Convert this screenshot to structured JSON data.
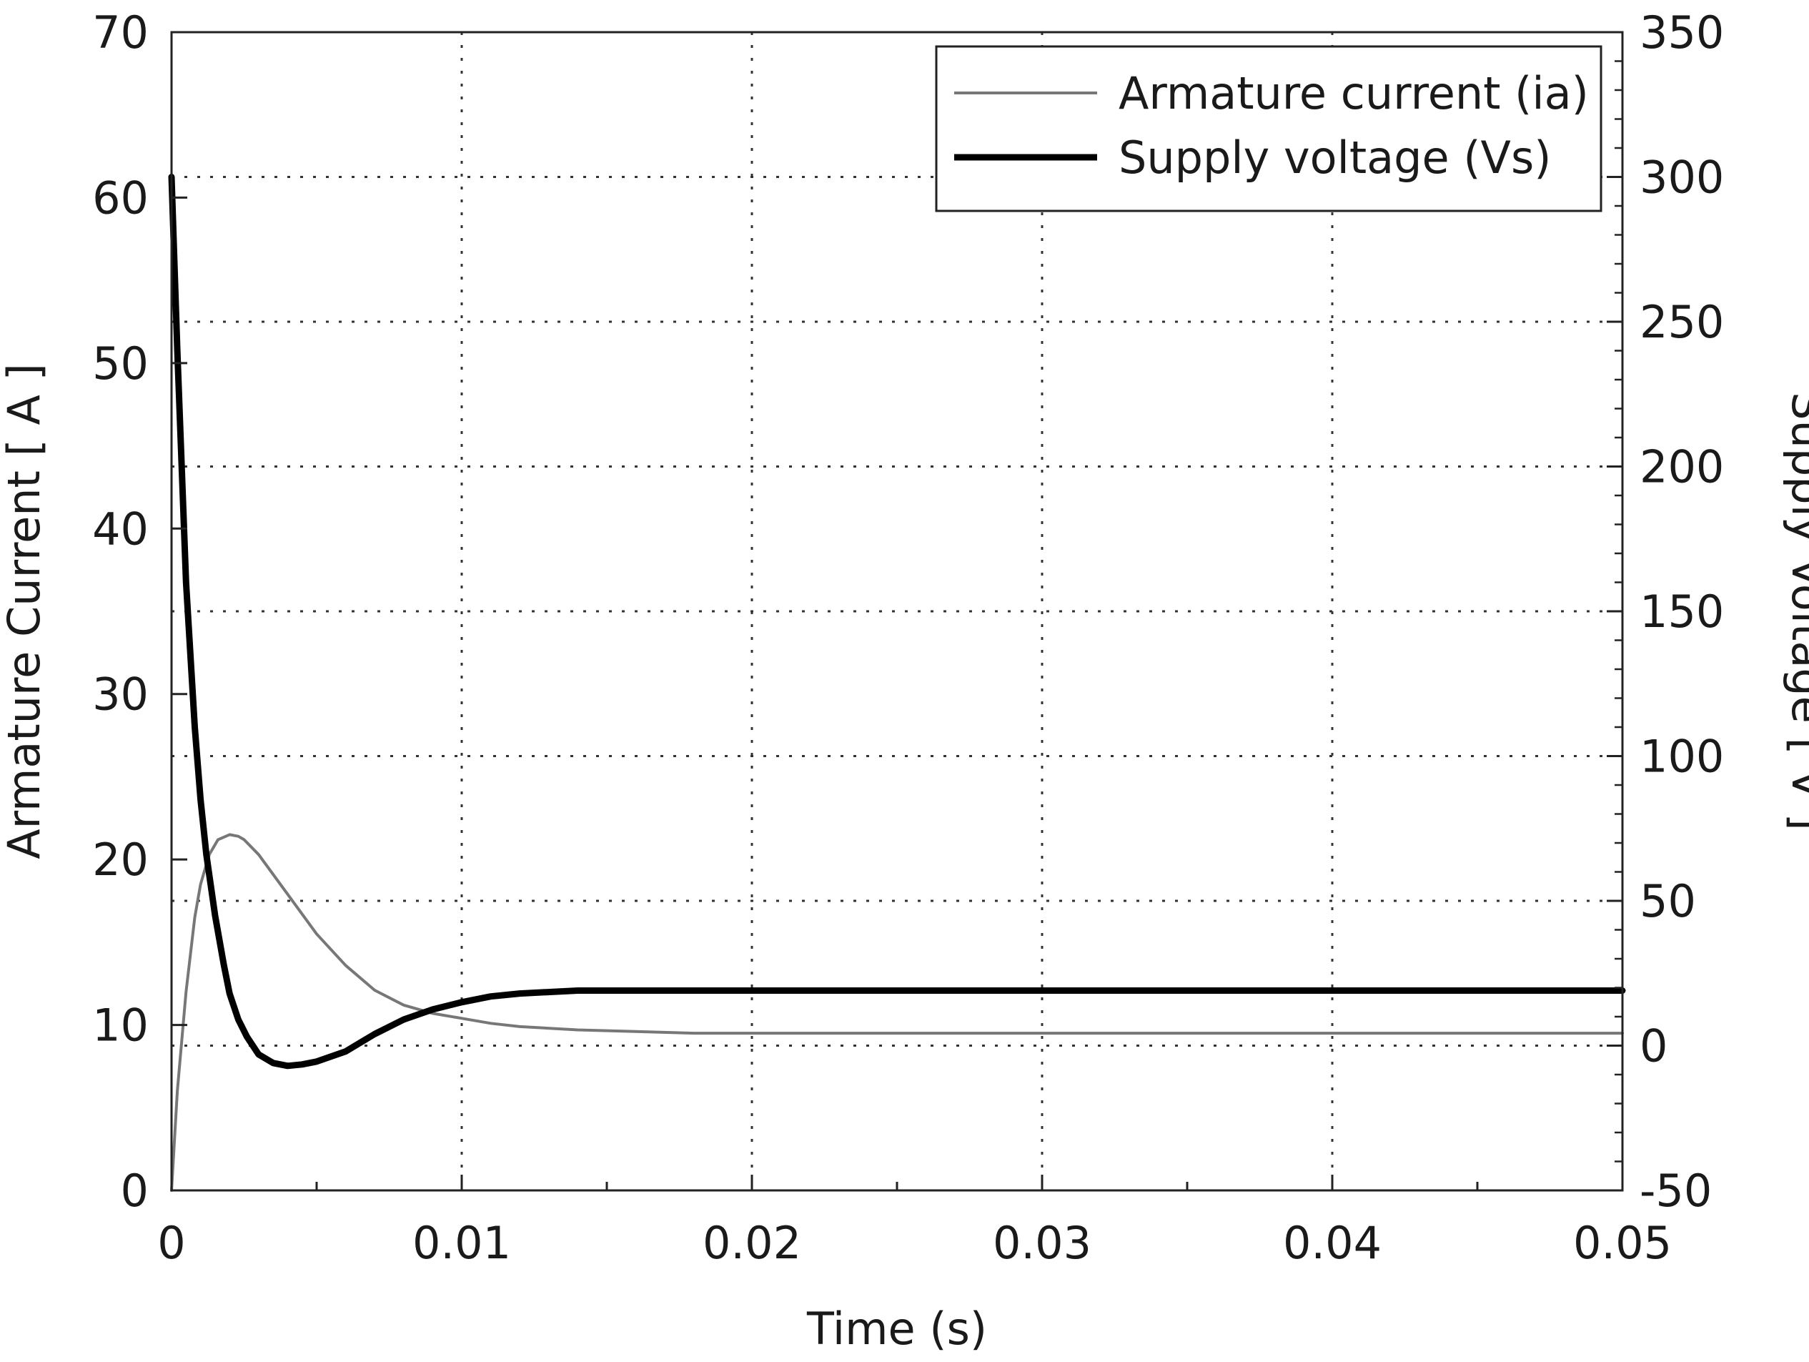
{
  "chart_data": {
    "type": "line",
    "title": "",
    "xlabel": "Time (s)",
    "ylabel": "Armature Current  [ A ]",
    "ylabel_right": "Supply Voltage  [ V ]",
    "xlim": [
      0,
      0.05
    ],
    "ylim": [
      0,
      70
    ],
    "ylim_right": [
      -50,
      350
    ],
    "x_ticks": [
      0,
      0.01,
      0.02,
      0.03,
      0.04,
      0.05
    ],
    "x_tick_labels": [
      "0",
      "0.01",
      "0.02",
      "0.03",
      "0.04",
      "0.05"
    ],
    "y_ticks": [
      0,
      10,
      20,
      30,
      40,
      50,
      60,
      70
    ],
    "y_tick_labels": [
      "0",
      "10",
      "20",
      "30",
      "40",
      "50",
      "60",
      "70"
    ],
    "y_right_ticks": [
      -50,
      0,
      50,
      100,
      150,
      200,
      250,
      300,
      350
    ],
    "y_right_tick_labels": [
      "-50",
      "0",
      "50",
      "100",
      "150",
      "200",
      "250",
      "300",
      "350"
    ],
    "grid": true,
    "legend_position": "top-right",
    "series": [
      {
        "name": "Armature current (ia)",
        "axis": "left",
        "color": "#777777",
        "x": [
          0,
          0.0002,
          0.0005,
          0.0008,
          0.001,
          0.0013,
          0.0016,
          0.002,
          0.0023,
          0.0025,
          0.003,
          0.004,
          0.005,
          0.006,
          0.007,
          0.008,
          0.009,
          0.01,
          0.011,
          0.012,
          0.014,
          0.016,
          0.018,
          0.02,
          0.025,
          0.03,
          0.04,
          0.05
        ],
        "y": [
          0,
          6,
          12,
          16.5,
          18.5,
          20.3,
          21.2,
          21.5,
          21.4,
          21.2,
          20.3,
          17.9,
          15.5,
          13.6,
          12.1,
          11.2,
          10.7,
          10.4,
          10.1,
          9.9,
          9.7,
          9.6,
          9.5,
          9.5,
          9.5,
          9.5,
          9.5,
          9.5
        ]
      },
      {
        "name": "Supply voltage (Vs)",
        "axis": "right",
        "color": "#000000",
        "x": [
          0,
          0.0002,
          0.0005,
          0.0008,
          0.001,
          0.0012,
          0.0015,
          0.0018,
          0.002,
          0.0023,
          0.0026,
          0.003,
          0.0035,
          0.004,
          0.0045,
          0.005,
          0.006,
          0.007,
          0.008,
          0.009,
          0.01,
          0.011,
          0.012,
          0.014,
          0.016,
          0.02,
          0.03,
          0.04,
          0.05
        ],
        "y": [
          300,
          240,
          160,
          110,
          85,
          66,
          45,
          28,
          18,
          9,
          3,
          -3,
          -6,
          -7,
          -6.5,
          -5.5,
          -2,
          4,
          9,
          12.5,
          15,
          17,
          18,
          19,
          19,
          19,
          19,
          19,
          19
        ]
      }
    ]
  }
}
